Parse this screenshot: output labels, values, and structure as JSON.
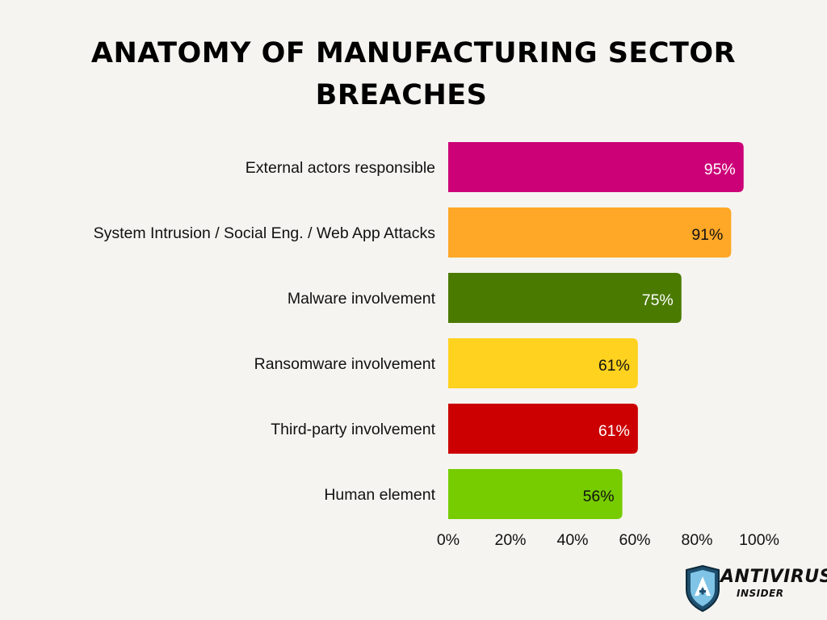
{
  "title_line1": "Anatomy of Manufacturing Sector",
  "title_line2": "Breaches",
  "chart_data": {
    "type": "bar",
    "orientation": "horizontal",
    "categories": [
      "External actors responsible",
      "System Intrusion / Social Eng. / Web App Attacks",
      "Malware involvement",
      "Ransomware involvement",
      "Third-party involvement",
      "Human element"
    ],
    "values": [
      95,
      91,
      75,
      61,
      61,
      56
    ],
    "value_labels": [
      "95%",
      "91%",
      "75%",
      "61%",
      "61%",
      "56%"
    ],
    "bar_colors": [
      "#cc0077",
      "#ffa726",
      "#4a7a00",
      "#ffd21f",
      "#cc0000",
      "#77cc00"
    ],
    "value_label_colors": [
      "#ffffff",
      "#111111",
      "#ffffff",
      "#111111",
      "#ffffff",
      "#111111"
    ],
    "xlim": [
      0,
      100
    ],
    "xticks": [
      0,
      20,
      40,
      60,
      80,
      100
    ],
    "xtick_labels": [
      "0%",
      "20%",
      "40%",
      "60%",
      "80%",
      "100%"
    ],
    "grid": false
  },
  "logo": {
    "name_line1": "ANTIVIRUS",
    "name_line2": "INSIDER"
  }
}
